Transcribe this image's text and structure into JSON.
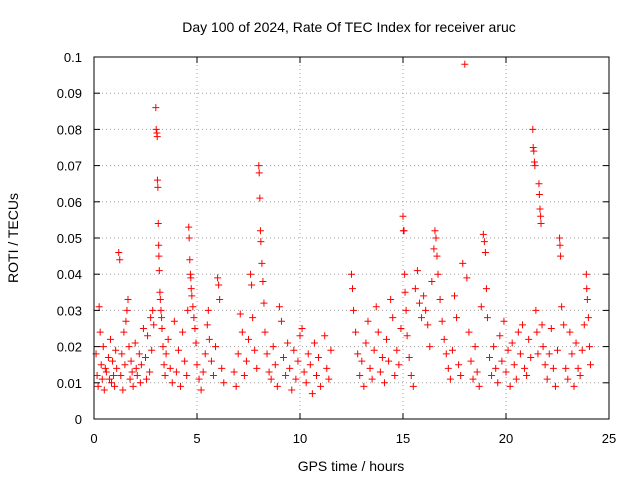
{
  "chart_data": {
    "type": "scatter",
    "title": "Day 100 of 2024, Rate Of TEC Index for receiver aruc",
    "xlabel": "GPS time / hours",
    "ylabel": "ROTI / TECUs",
    "xlim": [
      0,
      25
    ],
    "ylim": [
      0,
      0.1
    ],
    "xticks": [
      0,
      5,
      10,
      15,
      20,
      25
    ],
    "xtick_labels": [
      "0",
      "5",
      "10",
      "15",
      "20",
      "25"
    ],
    "yticks": [
      0,
      0.01,
      0.02,
      0.03,
      0.04,
      0.05,
      0.06,
      0.07,
      0.08,
      0.09,
      0.1
    ],
    "ytick_labels": [
      "0",
      "0.01",
      "0.02",
      "0.03",
      "0.04",
      "0.05",
      "0.06",
      "0.07",
      "0.08",
      "0.09",
      "0.1"
    ],
    "grid": true,
    "marker": "plus",
    "color": "#ff0000",
    "series": [
      {
        "points": [
          [
            0.1,
            0.018
          ],
          [
            0.15,
            0.012
          ],
          [
            0.2,
            0.009
          ],
          [
            0.25,
            0.031
          ],
          [
            0.3,
            0.024
          ],
          [
            0.35,
            0.015
          ],
          [
            0.4,
            0.011
          ],
          [
            0.45,
            0.02
          ],
          [
            0.5,
            0.008
          ],
          [
            0.55,
            0.014
          ],
          [
            0.6,
            0.013
          ],
          [
            0.7,
            0.017
          ],
          [
            0.75,
            0.011
          ],
          [
            0.8,
            0.022
          ],
          [
            0.85,
            0.01
          ],
          [
            0.9,
            0.016
          ],
          [
            0.95,
            0.012
          ],
          [
            1.0,
            0.009
          ],
          [
            1.05,
            0.019
          ],
          [
            1.1,
            0.014
          ],
          [
            1.2,
            0.046
          ],
          [
            1.25,
            0.044
          ],
          [
            1.3,
            0.012
          ],
          [
            1.35,
            0.018
          ],
          [
            1.4,
            0.008
          ],
          [
            1.45,
            0.024
          ],
          [
            1.5,
            0.015
          ],
          [
            1.55,
            0.027
          ],
          [
            1.6,
            0.03
          ],
          [
            1.65,
            0.033
          ],
          [
            1.7,
            0.02
          ],
          [
            1.75,
            0.011
          ],
          [
            1.8,
            0.016
          ],
          [
            1.85,
            0.013
          ],
          [
            1.9,
            0.009
          ],
          [
            2.0,
            0.021
          ],
          [
            2.05,
            0.014
          ],
          [
            2.1,
            0.012
          ],
          [
            2.2,
            0.018
          ],
          [
            2.25,
            0.01
          ],
          [
            2.3,
            0.015
          ],
          [
            2.4,
            0.025
          ],
          [
            2.5,
            0.017
          ],
          [
            2.55,
            0.011
          ],
          [
            2.6,
            0.023
          ],
          [
            2.7,
            0.013
          ],
          [
            2.75,
            0.028
          ],
          [
            2.8,
            0.019
          ],
          [
            2.85,
            0.03
          ],
          [
            2.9,
            0.026
          ],
          [
            3.0,
            0.086
          ],
          [
            3.02,
            0.08
          ],
          [
            3.05,
            0.079
          ],
          [
            3.07,
            0.078
          ],
          [
            3.08,
            0.066
          ],
          [
            3.1,
            0.064
          ],
          [
            3.12,
            0.054
          ],
          [
            3.14,
            0.048
          ],
          [
            3.15,
            0.045
          ],
          [
            3.17,
            0.041
          ],
          [
            3.2,
            0.035
          ],
          [
            3.22,
            0.033
          ],
          [
            3.25,
            0.03
          ],
          [
            3.28,
            0.028
          ],
          [
            3.3,
            0.025
          ],
          [
            3.35,
            0.02
          ],
          [
            3.4,
            0.015
          ],
          [
            3.45,
            0.012
          ],
          [
            3.5,
            0.018
          ],
          [
            3.6,
            0.022
          ],
          [
            3.7,
            0.014
          ],
          [
            3.8,
            0.01
          ],
          [
            3.9,
            0.027
          ],
          [
            4.0,
            0.013
          ],
          [
            4.1,
            0.019
          ],
          [
            4.2,
            0.009
          ],
          [
            4.3,
            0.024
          ],
          [
            4.4,
            0.016
          ],
          [
            4.5,
            0.012
          ],
          [
            4.55,
            0.03
          ],
          [
            4.6,
            0.053
          ],
          [
            4.62,
            0.05
          ],
          [
            4.65,
            0.044
          ],
          [
            4.68,
            0.04
          ],
          [
            4.7,
            0.039
          ],
          [
            4.72,
            0.036
          ],
          [
            4.75,
            0.034
          ],
          [
            4.8,
            0.031
          ],
          [
            4.85,
            0.028
          ],
          [
            4.9,
            0.025
          ],
          [
            4.95,
            0.021
          ],
          [
            5.0,
            0.015
          ],
          [
            5.1,
            0.011
          ],
          [
            5.2,
            0.008
          ],
          [
            5.3,
            0.013
          ],
          [
            5.4,
            0.018
          ],
          [
            5.5,
            0.026
          ],
          [
            5.55,
            0.03
          ],
          [
            5.6,
            0.022
          ],
          [
            5.7,
            0.016
          ],
          [
            5.8,
            0.012
          ],
          [
            5.9,
            0.02
          ],
          [
            6.0,
            0.039
          ],
          [
            6.05,
            0.037
          ],
          [
            6.1,
            0.033
          ],
          [
            6.2,
            0.014
          ],
          [
            6.3,
            0.01
          ],
          [
            6.8,
            0.013
          ],
          [
            6.9,
            0.009
          ],
          [
            7.0,
            0.018
          ],
          [
            7.1,
            0.029
          ],
          [
            7.2,
            0.024
          ],
          [
            7.3,
            0.012
          ],
          [
            7.4,
            0.016
          ],
          [
            7.5,
            0.022
          ],
          [
            7.6,
            0.04
          ],
          [
            7.65,
            0.037
          ],
          [
            7.7,
            0.028
          ],
          [
            7.8,
            0.019
          ],
          [
            7.9,
            0.014
          ],
          [
            8.0,
            0.07
          ],
          [
            8.02,
            0.068
          ],
          [
            8.05,
            0.061
          ],
          [
            8.08,
            0.052
          ],
          [
            8.1,
            0.049
          ],
          [
            8.15,
            0.043
          ],
          [
            8.2,
            0.038
          ],
          [
            8.25,
            0.032
          ],
          [
            8.3,
            0.024
          ],
          [
            8.4,
            0.018
          ],
          [
            8.5,
            0.013
          ],
          [
            8.6,
            0.011
          ],
          [
            8.7,
            0.02
          ],
          [
            8.8,
            0.015
          ],
          [
            8.9,
            0.009
          ],
          [
            9.0,
            0.031
          ],
          [
            9.1,
            0.027
          ],
          [
            9.2,
            0.017
          ],
          [
            9.3,
            0.012
          ],
          [
            9.4,
            0.021
          ],
          [
            9.5,
            0.014
          ],
          [
            9.6,
            0.008
          ],
          [
            9.7,
            0.019
          ],
          [
            9.8,
            0.011
          ],
          [
            9.9,
            0.016
          ],
          [
            10.0,
            0.023
          ],
          [
            10.1,
            0.025
          ],
          [
            10.2,
            0.013
          ],
          [
            10.3,
            0.01
          ],
          [
            10.4,
            0.018
          ],
          [
            10.5,
            0.015
          ],
          [
            10.6,
            0.007
          ],
          [
            10.7,
            0.021
          ],
          [
            10.8,
            0.012
          ],
          [
            10.9,
            0.017
          ],
          [
            11.0,
            0.009
          ],
          [
            11.2,
            0.023
          ],
          [
            11.3,
            0.014
          ],
          [
            11.4,
            0.011
          ],
          [
            11.5,
            0.019
          ],
          [
            12.5,
            0.04
          ],
          [
            12.55,
            0.036
          ],
          [
            12.6,
            0.03
          ],
          [
            12.7,
            0.024
          ],
          [
            12.8,
            0.018
          ],
          [
            12.9,
            0.012
          ],
          [
            13.0,
            0.016
          ],
          [
            13.1,
            0.009
          ],
          [
            13.2,
            0.021
          ],
          [
            13.3,
            0.027
          ],
          [
            13.4,
            0.014
          ],
          [
            13.5,
            0.011
          ],
          [
            13.6,
            0.019
          ],
          [
            13.7,
            0.031
          ],
          [
            13.8,
            0.024
          ],
          [
            13.9,
            0.013
          ],
          [
            14.0,
            0.017
          ],
          [
            14.1,
            0.01
          ],
          [
            14.2,
            0.022
          ],
          [
            14.3,
            0.016
          ],
          [
            14.4,
            0.033
          ],
          [
            14.5,
            0.028
          ],
          [
            14.6,
            0.012
          ],
          [
            14.7,
            0.019
          ],
          [
            14.8,
            0.015
          ],
          [
            14.9,
            0.025
          ],
          [
            15.0,
            0.056
          ],
          [
            15.02,
            0.052
          ],
          [
            15.05,
            0.052
          ],
          [
            15.08,
            0.04
          ],
          [
            15.1,
            0.035
          ],
          [
            15.15,
            0.03
          ],
          [
            15.2,
            0.023
          ],
          [
            15.3,
            0.017
          ],
          [
            15.4,
            0.012
          ],
          [
            15.5,
            0.009
          ],
          [
            15.6,
            0.036
          ],
          [
            15.7,
            0.041
          ],
          [
            15.8,
            0.032
          ],
          [
            15.9,
            0.028
          ],
          [
            16.0,
            0.034
          ],
          [
            16.1,
            0.03
          ],
          [
            16.2,
            0.026
          ],
          [
            16.3,
            0.02
          ],
          [
            16.4,
            0.038
          ],
          [
            16.5,
            0.047
          ],
          [
            16.55,
            0.052
          ],
          [
            16.6,
            0.05
          ],
          [
            16.65,
            0.045
          ],
          [
            16.7,
            0.04
          ],
          [
            16.8,
            0.033
          ],
          [
            16.9,
            0.027
          ],
          [
            17.0,
            0.022
          ],
          [
            17.1,
            0.018
          ],
          [
            17.2,
            0.014
          ],
          [
            17.3,
            0.011
          ],
          [
            17.4,
            0.019
          ],
          [
            17.5,
            0.034
          ],
          [
            17.6,
            0.028
          ],
          [
            17.7,
            0.015
          ],
          [
            17.8,
            0.012
          ],
          [
            17.9,
            0.043
          ],
          [
            18.0,
            0.098
          ],
          [
            18.1,
            0.039
          ],
          [
            18.2,
            0.024
          ],
          [
            18.3,
            0.016
          ],
          [
            18.4,
            0.011
          ],
          [
            18.5,
            0.02
          ],
          [
            18.6,
            0.013
          ],
          [
            18.7,
            0.009
          ],
          [
            18.8,
            0.031
          ],
          [
            18.9,
            0.051
          ],
          [
            18.95,
            0.049
          ],
          [
            19.0,
            0.046
          ],
          [
            19.05,
            0.036
          ],
          [
            19.1,
            0.028
          ],
          [
            19.2,
            0.017
          ],
          [
            19.3,
            0.012
          ],
          [
            19.4,
            0.02
          ],
          [
            19.5,
            0.014
          ],
          [
            19.6,
            0.01
          ],
          [
            19.7,
            0.023
          ],
          [
            19.8,
            0.016
          ],
          [
            19.9,
            0.027
          ],
          [
            20.0,
            0.013
          ],
          [
            20.1,
            0.019
          ],
          [
            20.2,
            0.009
          ],
          [
            20.3,
            0.021
          ],
          [
            20.4,
            0.015
          ],
          [
            20.5,
            0.011
          ],
          [
            20.6,
            0.024
          ],
          [
            20.7,
            0.018
          ],
          [
            20.8,
            0.026
          ],
          [
            20.9,
            0.014
          ],
          [
            21.0,
            0.012
          ],
          [
            21.1,
            0.022
          ],
          [
            21.2,
            0.017
          ],
          [
            21.3,
            0.08
          ],
          [
            21.32,
            0.075
          ],
          [
            21.35,
            0.074
          ],
          [
            21.38,
            0.071
          ],
          [
            21.4,
            0.07
          ],
          [
            21.45,
            0.03
          ],
          [
            21.5,
            0.024
          ],
          [
            21.55,
            0.018
          ],
          [
            21.6,
            0.065
          ],
          [
            21.62,
            0.062
          ],
          [
            21.65,
            0.058
          ],
          [
            21.68,
            0.056
          ],
          [
            21.7,
            0.054
          ],
          [
            21.75,
            0.026
          ],
          [
            21.8,
            0.02
          ],
          [
            21.9,
            0.015
          ],
          [
            22.0,
            0.011
          ],
          [
            22.1,
            0.018
          ],
          [
            22.2,
            0.025
          ],
          [
            22.3,
            0.014
          ],
          [
            22.4,
            0.009
          ],
          [
            22.5,
            0.019
          ],
          [
            22.6,
            0.05
          ],
          [
            22.62,
            0.048
          ],
          [
            22.65,
            0.045
          ],
          [
            22.7,
            0.031
          ],
          [
            22.8,
            0.026
          ],
          [
            22.9,
            0.014
          ],
          [
            23.0,
            0.011
          ],
          [
            23.1,
            0.024
          ],
          [
            23.2,
            0.018
          ],
          [
            23.3,
            0.009
          ],
          [
            23.4,
            0.021
          ],
          [
            23.5,
            0.014
          ],
          [
            23.6,
            0.012
          ],
          [
            23.7,
            0.019
          ],
          [
            23.8,
            0.026
          ],
          [
            23.9,
            0.04
          ],
          [
            23.92,
            0.036
          ],
          [
            23.95,
            0.033
          ],
          [
            24.0,
            0.028
          ],
          [
            24.05,
            0.02
          ],
          [
            24.1,
            0.015
          ]
        ]
      }
    ]
  }
}
